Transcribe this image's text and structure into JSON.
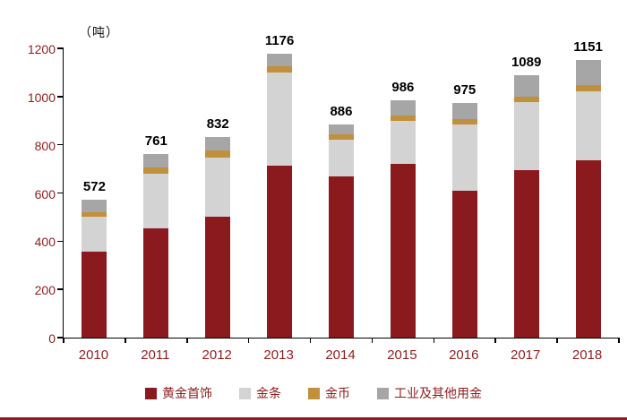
{
  "chart_data": {
    "type": "bar",
    "stacked": true,
    "title": "",
    "ylabel": "（吨）",
    "xlabel": "",
    "ylim": [
      0,
      1200
    ],
    "ytick_step": 200,
    "grid": false,
    "legend_position": "bottom",
    "categories": [
      "2010",
      "2011",
      "2012",
      "2013",
      "2014",
      "2015",
      "2016",
      "2017",
      "2018"
    ],
    "series": [
      {
        "key": "jewelry",
        "name": "黄金首饰",
        "color": "#8b1a1e",
        "values": [
          355,
          455,
          500,
          715,
          667,
          721,
          611,
          696,
          736
        ]
      },
      {
        "key": "gold-bars",
        "name": "金条",
        "color": "#d3d3d3",
        "values": [
          145,
          225,
          245,
          385,
          155,
          180,
          275,
          280,
          285
        ]
      },
      {
        "key": "gold-coins",
        "name": "金币",
        "color": "#c0903c",
        "values": [
          20,
          25,
          30,
          25,
          20,
          20,
          20,
          25,
          25
        ]
      },
      {
        "key": "industrial-and-other",
        "name": "工业及其他用金",
        "color": "#a6a6a6",
        "values": [
          52,
          56,
          57,
          51,
          44,
          65,
          69,
          88,
          105
        ]
      }
    ],
    "totals": [
      572,
      761,
      832,
      1176,
      886,
      986,
      975,
      1089,
      1151
    ]
  },
  "accent_color": "#8b1e1e",
  "text_color_axis": "#8b1e1e",
  "text_color_values": "#000000"
}
